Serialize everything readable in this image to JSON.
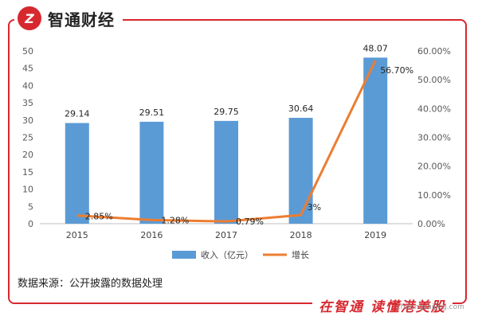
{
  "brand": {
    "logo_text": "Z",
    "name": "智通财经"
  },
  "footer": {
    "source": "数据来源：公开披露的数据处理",
    "slogan": "在智通 读懂港美股",
    "watermark": "zhitongcaijing.com"
  },
  "colors": {
    "bar": "#5b9bd5",
    "line": "#ed7d31",
    "brand_red": "#d7282f"
  },
  "chart_data": {
    "type": "bar",
    "categories": [
      "2015",
      "2016",
      "2017",
      "2018",
      "2019"
    ],
    "series": [
      {
        "name": "收入（亿元）",
        "type": "bar",
        "axis": "left",
        "values": [
          29.14,
          29.51,
          29.75,
          30.64,
          48.07
        ],
        "labels": [
          "29.14",
          "29.51",
          "29.75",
          "30.64",
          "48.07"
        ]
      },
      {
        "name": "增长",
        "type": "line",
        "axis": "right",
        "values": [
          2.85,
          1.28,
          0.79,
          3.0,
          56.7
        ],
        "labels": [
          "2.85%",
          "1.28%",
          "0.79%",
          "3%",
          "56.70%"
        ]
      }
    ],
    "y_left": {
      "min": 0,
      "max": 50,
      "ticks": [
        "0",
        "5",
        "10",
        "15",
        "20",
        "25",
        "30",
        "35",
        "40",
        "45",
        "50"
      ]
    },
    "y_right": {
      "min": 0,
      "max": 60,
      "ticks": [
        "0.00%",
        "10.00%",
        "20.00%",
        "30.00%",
        "40.00%",
        "50.00%",
        "60.00%"
      ]
    },
    "grid": false,
    "legend_position": "bottom"
  }
}
